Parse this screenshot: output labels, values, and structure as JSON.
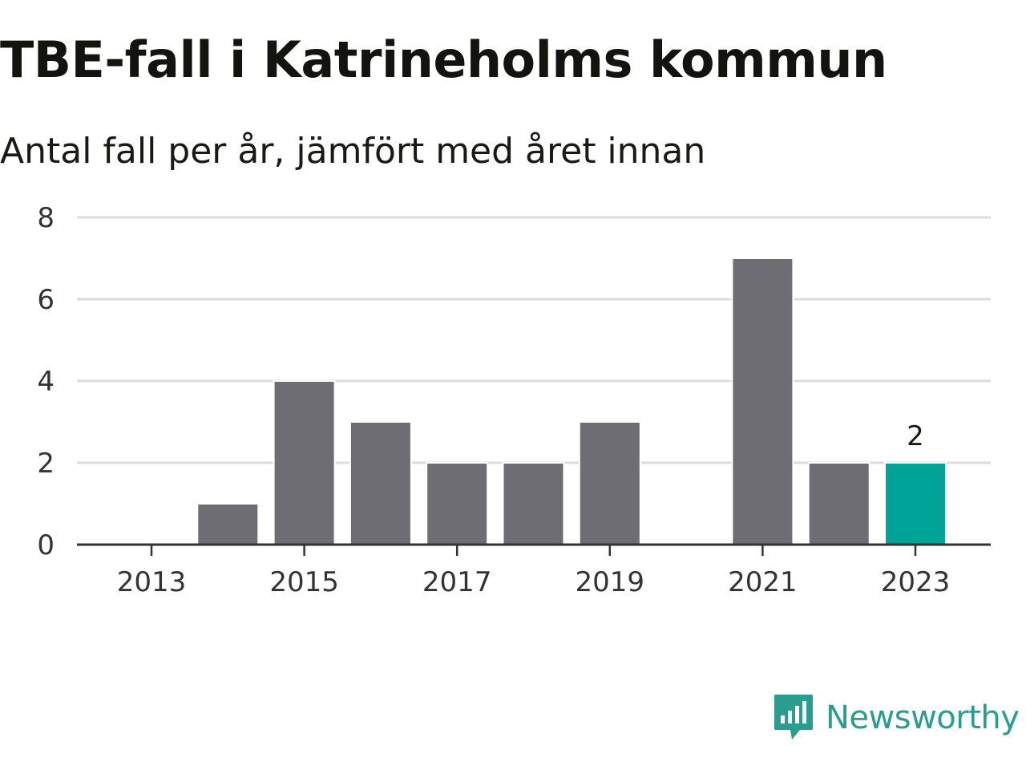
{
  "header": {
    "title": "TBE-fall i Katrineholms kommun",
    "subtitle": "Antal fall per år, jämfört med året innan"
  },
  "brand": {
    "name": "Newsworthy",
    "icon": "newsworthy-logo-icon",
    "color": "#2a9d8f"
  },
  "colors": {
    "bar": "#6e6d73",
    "highlight": "#00a397",
    "grid": "#dcdcdc",
    "axis": "#333333"
  },
  "chart_data": {
    "type": "bar",
    "categories": [
      "2013",
      "2014",
      "2015",
      "2016",
      "2017",
      "2018",
      "2019",
      "2020",
      "2021",
      "2022",
      "2023"
    ],
    "values": [
      0,
      1,
      4,
      3,
      2,
      2,
      3,
      0,
      7,
      2,
      2
    ],
    "highlight_index": 10,
    "highlight_label": "2",
    "x_tick_labels": [
      "2013",
      "2015",
      "2017",
      "2019",
      "2021",
      "2023"
    ],
    "y_ticks": [
      0,
      2,
      4,
      6,
      8
    ],
    "ylim": [
      0,
      8
    ],
    "grid": true,
    "legend": "none"
  }
}
